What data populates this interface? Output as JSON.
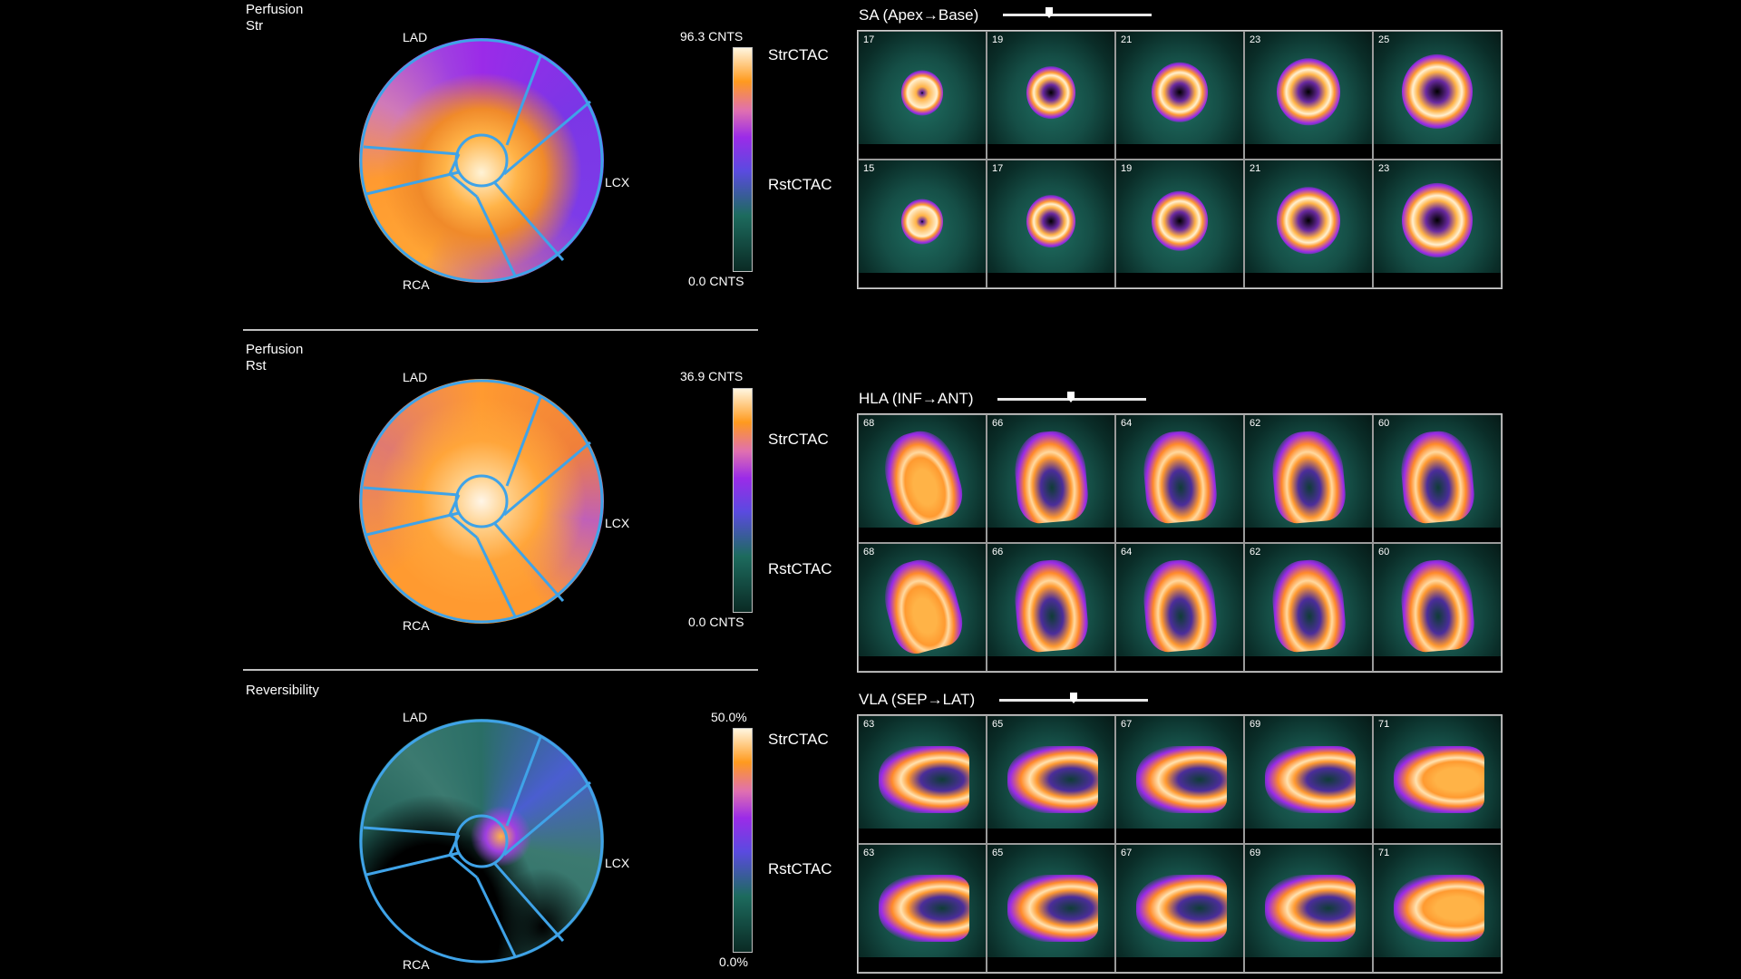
{
  "panels": [
    {
      "title_line1": "Perfusion",
      "title_line2": "Str",
      "labels": {
        "lad": "LAD",
        "lcx": "LCX",
        "rca": "RCA"
      },
      "colorbar": {
        "max": "96.3 CNTS",
        "min": "0.0 CNTS",
        "upper": "StrCTAC",
        "lower": "RstCTAC"
      }
    },
    {
      "title_line1": "Perfusion",
      "title_line2": "Rst",
      "labels": {
        "lad": "LAD",
        "lcx": "LCX",
        "rca": "RCA"
      },
      "colorbar": {
        "max": "36.9 CNTS",
        "min": "0.0 CNTS",
        "upper": "StrCTAC",
        "lower": "RstCTAC"
      }
    },
    {
      "title_line1": "Reversibility",
      "title_line2": "",
      "labels": {
        "lad": "LAD",
        "lcx": "LCX",
        "rca": "RCA"
      },
      "colorbar": {
        "max": "50.0%",
        "min": "0.0%",
        "upper": "StrCTAC",
        "lower": "RstCTAC"
      }
    }
  ],
  "views": [
    {
      "title": "SA (Apex→Base)",
      "slider_value": 0.3,
      "row1": [
        "17",
        "19",
        "21",
        "23",
        "25"
      ],
      "row2": [
        "15",
        "17",
        "19",
        "21",
        "23"
      ]
    },
    {
      "title": "HLA (INF→ANT)",
      "slider_value": 0.5,
      "row1": [
        "68",
        "66",
        "64",
        "62",
        "60"
      ],
      "row2": [
        "68",
        "66",
        "64",
        "62",
        "60"
      ]
    },
    {
      "title": "VLA (SEP→LAT)",
      "slider_value": 0.5,
      "row1": [
        "63",
        "65",
        "67",
        "69",
        "71"
      ],
      "row2": [
        "63",
        "65",
        "67",
        "69",
        "71"
      ]
    }
  ],
  "colors": {
    "accent": "#3fa3e8",
    "hot": "#ff9a1e",
    "purple": "#9b2be8",
    "teal": "#1d6b5e"
  }
}
